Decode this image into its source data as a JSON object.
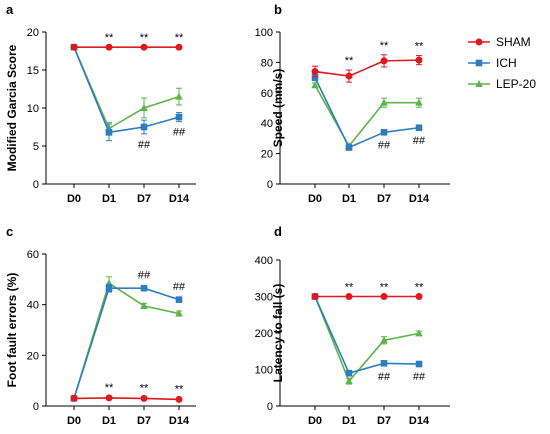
{
  "colors": {
    "SHAM": "#e0191f",
    "ICH": "#2e7dbf",
    "LEP-20": "#5cb54a"
  },
  "legend": [
    {
      "name": "SHAM",
      "marker": "circle"
    },
    {
      "name": "ICH",
      "marker": "square"
    },
    {
      "name": "LEP-20",
      "marker": "triangle"
    }
  ],
  "chart_data": [
    {
      "panel": "a",
      "type": "line",
      "ylabel": "Modified Garcia Score",
      "x": [
        "D0",
        "D1",
        "D7",
        "D14"
      ],
      "ylim": [
        0,
        20
      ],
      "yticks": [
        0,
        5,
        10,
        15,
        20
      ],
      "series": [
        {
          "name": "SHAM",
          "values": [
            18,
            18,
            18,
            18
          ],
          "err": [
            0,
            0,
            0,
            0
          ]
        },
        {
          "name": "ICH",
          "values": [
            18,
            6.8,
            7.5,
            8.8
          ],
          "err": [
            0,
            1.1,
            0.9,
            0.6
          ]
        },
        {
          "name": "LEP-20",
          "values": [
            18,
            7.3,
            10.0,
            11.5
          ],
          "err": [
            0,
            0.8,
            1.3,
            1.1
          ]
        }
      ],
      "annotations": [
        {
          "x": "D1",
          "y": 18,
          "text": "**",
          "pos": "above"
        },
        {
          "x": "D7",
          "y": 18,
          "text": "**",
          "pos": "above"
        },
        {
          "x": "D14",
          "y": 18,
          "text": "**",
          "pos": "above"
        },
        {
          "x": "D7",
          "y": 6.6,
          "text": "##",
          "pos": "below"
        },
        {
          "x": "D14",
          "y": 8.2,
          "text": "##",
          "pos": "below"
        }
      ]
    },
    {
      "panel": "b",
      "type": "line",
      "ylabel": "Speed (mm/s)",
      "x": [
        "D0",
        "D1",
        "D7",
        "D14"
      ],
      "ylim": [
        0,
        100
      ],
      "yticks": [
        0,
        20,
        40,
        60,
        80,
        100
      ],
      "series": [
        {
          "name": "SHAM",
          "values": [
            74,
            71,
            81,
            81.5
          ],
          "err": [
            3.5,
            4,
            4,
            3
          ]
        },
        {
          "name": "ICH",
          "values": [
            70,
            24,
            34,
            37
          ],
          "err": [
            2,
            1.5,
            1.5,
            1.5
          ]
        },
        {
          "name": "LEP-20",
          "values": [
            65,
            25,
            53.5,
            53.5
          ],
          "err": [
            1.5,
            1.5,
            3,
            3
          ]
        }
      ],
      "annotations": [
        {
          "x": "D1",
          "y": 75,
          "text": "**",
          "pos": "above"
        },
        {
          "x": "D7",
          "y": 85,
          "text": "**",
          "pos": "above"
        },
        {
          "x": "D14",
          "y": 84.5,
          "text": "**",
          "pos": "above"
        },
        {
          "x": "D7",
          "y": 32.5,
          "text": "##",
          "pos": "below"
        },
        {
          "x": "D14",
          "y": 35.5,
          "text": "##",
          "pos": "below"
        }
      ]
    },
    {
      "panel": "c",
      "type": "line",
      "ylabel": "Foot fault errors (%)",
      "x": [
        "D0",
        "D1",
        "D7",
        "D14"
      ],
      "ylim": [
        0,
        60
      ],
      "yticks": [
        0,
        20,
        40,
        60
      ],
      "series": [
        {
          "name": "SHAM",
          "values": [
            3,
            3.2,
            3,
            2.6
          ],
          "err": [
            0.3,
            0.3,
            0.3,
            0.3
          ]
        },
        {
          "name": "ICH",
          "values": [
            3,
            46.5,
            46.5,
            42
          ],
          "err": [
            0.3,
            1.5,
            1,
            1
          ]
        },
        {
          "name": "LEP-20",
          "values": [
            3,
            48.5,
            39.5,
            36.5
          ],
          "err": [
            0.3,
            2.5,
            1,
            1
          ]
        }
      ],
      "annotations": [
        {
          "x": "D1",
          "y": 3.5,
          "text": "**",
          "pos": "above"
        },
        {
          "x": "D7",
          "y": 3.3,
          "text": "**",
          "pos": "above"
        },
        {
          "x": "D14",
          "y": 2.9,
          "text": "**",
          "pos": "above"
        },
        {
          "x": "D7",
          "y": 48,
          "text": "##",
          "pos": "above"
        },
        {
          "x": "D14",
          "y": 43.5,
          "text": "##",
          "pos": "above"
        }
      ]
    },
    {
      "panel": "d",
      "type": "line",
      "ylabel": "Latency to fall (s)",
      "x": [
        "D0",
        "D1",
        "D7",
        "D14"
      ],
      "ylim": [
        0,
        400
      ],
      "yticks": [
        0,
        100,
        200,
        300,
        400
      ],
      "series": [
        {
          "name": "SHAM",
          "values": [
            300,
            300,
            300,
            300
          ],
          "err": [
            0,
            0,
            0,
            0
          ]
        },
        {
          "name": "ICH",
          "values": [
            300,
            90,
            117,
            115
          ],
          "err": [
            0,
            5,
            5,
            4
          ]
        },
        {
          "name": "LEP-20",
          "values": [
            300,
            68,
            180,
            199
          ],
          "err": [
            0,
            8,
            10,
            6
          ]
        }
      ],
      "annotations": [
        {
          "x": "D1",
          "y": 300,
          "text": "**",
          "pos": "above"
        },
        {
          "x": "D7",
          "y": 300,
          "text": "**",
          "pos": "above"
        },
        {
          "x": "D14",
          "y": 300,
          "text": "**",
          "pos": "above"
        },
        {
          "x": "D7",
          "y": 110,
          "text": "##",
          "pos": "below"
        },
        {
          "x": "D14",
          "y": 110,
          "text": "##",
          "pos": "below"
        }
      ]
    }
  ]
}
